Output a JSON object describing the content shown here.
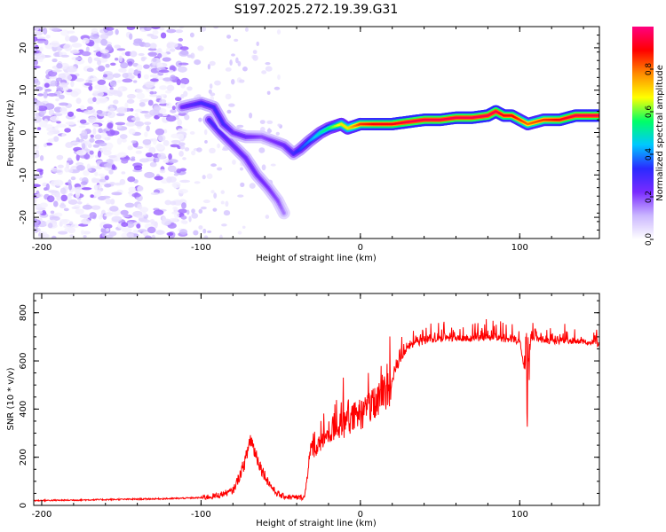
{
  "title": "S197.2025.272.19.39.G31",
  "chart_data": [
    {
      "type": "heatmap",
      "name": "spectrogram",
      "xlabel": "Height of straight line (km)",
      "ylabel": "Frequency (Hz)",
      "xlim": [
        -205,
        150
      ],
      "ylim": [
        -25,
        25
      ],
      "xticks": [
        -200,
        -100,
        0,
        100
      ],
      "yticks": [
        -20,
        -10,
        0,
        10,
        20
      ],
      "colorbar": {
        "label": "Normalized spectral amplitude",
        "range": [
          0,
          1
        ],
        "ticks": [
          "0.0",
          "0.2",
          "0.4",
          "0.6",
          "0.8"
        ],
        "colors": [
          "#ffffff",
          "#cbb7ff",
          "#7a2bff",
          "#2a2aff",
          "#00c8ff",
          "#00ff66",
          "#ffff00",
          "#ff8c00",
          "#ff0000",
          "#ff0080"
        ]
      },
      "ridge": {
        "x": [
          -112,
          -100,
          -92,
          -86,
          -80,
          -72,
          -62,
          -55,
          -48,
          -42,
          -38,
          -32,
          -25,
          -20,
          -12,
          -8,
          0,
          10,
          20,
          30,
          40,
          50,
          60,
          70,
          80,
          85,
          90,
          95,
          100,
          105,
          115,
          125,
          135,
          150
        ],
        "y": [
          6,
          7,
          6,
          2,
          0,
          -1,
          -1,
          -2,
          -3,
          -5,
          -4,
          -2,
          0,
          1,
          2,
          1,
          2,
          2,
          2,
          2.5,
          3,
          3,
          3.5,
          3.5,
          4,
          5,
          4,
          4,
          3,
          2,
          3,
          3,
          4,
          4
        ],
        "amplitude": [
          0.25,
          0.3,
          0.3,
          0.3,
          0.25,
          0.25,
          0.2,
          0.22,
          0.25,
          0.3,
          0.35,
          0.4,
          0.5,
          0.55,
          0.7,
          0.7,
          0.85,
          0.9,
          0.9,
          0.95,
          0.95,
          0.95,
          0.95,
          0.95,
          0.95,
          0.95,
          0.9,
          0.9,
          0.85,
          0.8,
          0.85,
          0.9,
          0.95,
          0.95
        ]
      },
      "branch": {
        "x": [
          -95,
          -88,
          -80,
          -72,
          -65,
          -58,
          -52,
          -48
        ],
        "y": [
          3,
          0,
          -3,
          -6,
          -10,
          -13,
          -16,
          -19
        ],
        "amplitude": [
          0.3,
          0.28,
          0.26,
          0.25,
          0.24,
          0.22,
          0.2,
          0.15
        ]
      },
      "noise_region": {
        "x": [
          -205,
          -110
        ],
        "amplitude": [
          0.02,
          0.2
        ]
      }
    },
    {
      "type": "line",
      "name": "snr",
      "color": "#ff0000",
      "xlabel": "Height of straight line (km)",
      "ylabel": "SNR (10 * v/v)",
      "xlim": [
        -205,
        150
      ],
      "ylim": [
        0,
        880
      ],
      "xticks": [
        -200,
        -100,
        0,
        100
      ],
      "yticks": [
        0,
        200,
        400,
        600,
        800
      ],
      "x": [
        -205,
        -180,
        -160,
        -140,
        -120,
        -110,
        -100,
        -90,
        -80,
        -76,
        -72,
        -69,
        -66,
        -62,
        -58,
        -54,
        -50,
        -45,
        -40,
        -35,
        -32,
        -30,
        -28,
        -25,
        -20,
        -15,
        -10,
        -5,
        0,
        5,
        10,
        15,
        20,
        25,
        30,
        40,
        50,
        60,
        70,
        80,
        90,
        100,
        103,
        105,
        107,
        110,
        120,
        130,
        140,
        150
      ],
      "y": [
        20,
        22,
        24,
        26,
        28,
        30,
        32,
        40,
        60,
        120,
        190,
        280,
        220,
        150,
        100,
        60,
        40,
        35,
        32,
        35,
        200,
        250,
        230,
        260,
        300,
        320,
        340,
        360,
        380,
        400,
        420,
        460,
        520,
        600,
        660,
        680,
        690,
        695,
        690,
        700,
        690,
        680,
        560,
        450,
        700,
        690,
        680,
        685,
        680,
        670
      ]
    }
  ]
}
